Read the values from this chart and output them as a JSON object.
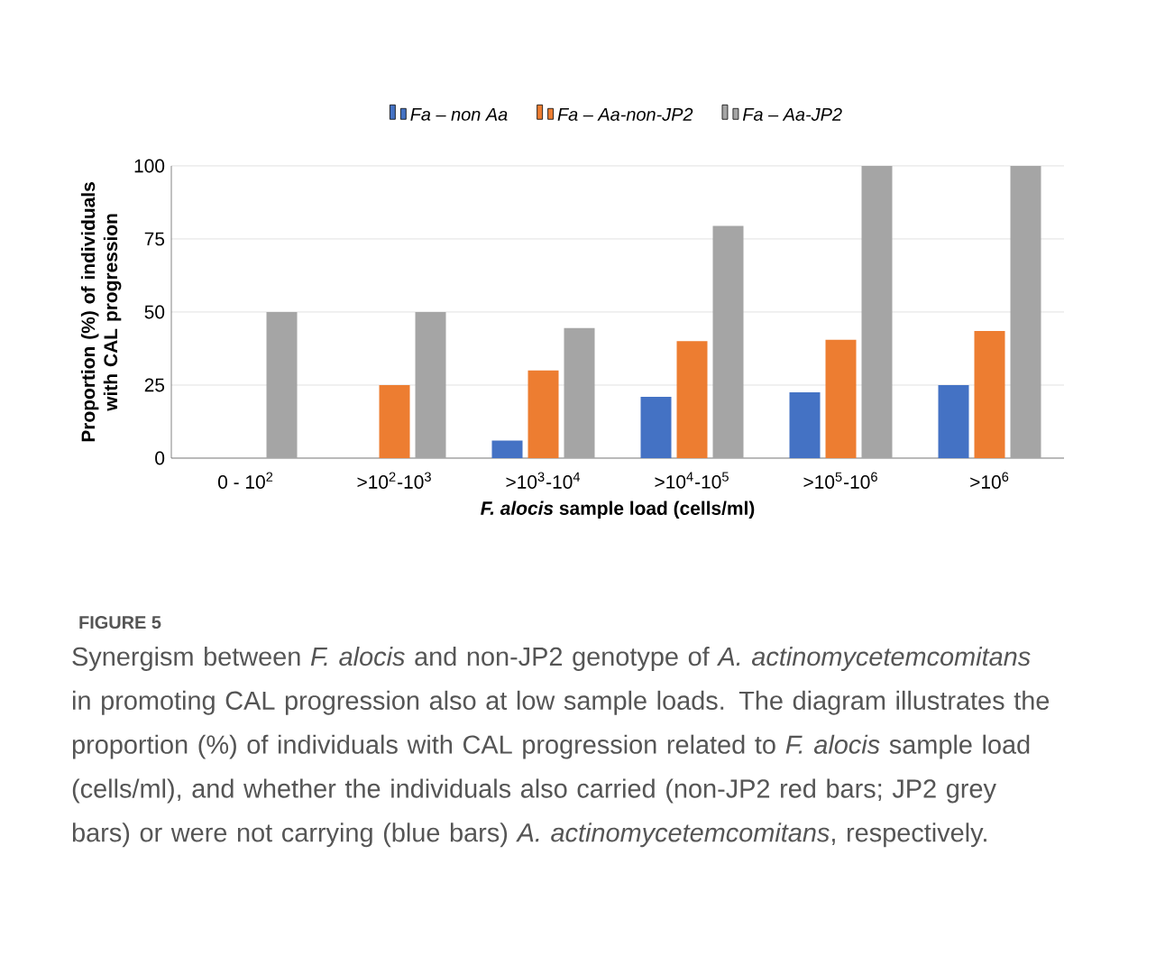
{
  "chart_data": {
    "type": "bar",
    "categories": [
      "0 - 10$^{2}$",
      ">10$^{2}$-10$^{3}$",
      ">10$^{3}$-10$^{4}$",
      ">10$^{4}$-10$^{5}$",
      ">10$^{5}$-10$^{6}$",
      ">10$^{6}$"
    ],
    "series": [
      {
        "name": "Fa – non Aa",
        "color": "#4472c4",
        "values": [
          null,
          null,
          6,
          21,
          22.5,
          25
        ]
      },
      {
        "name": "Fa – Aa-non-JP2",
        "color": "#ed7d31",
        "values": [
          null,
          25,
          30,
          40,
          40.5,
          43.5
        ]
      },
      {
        "name": "Fa – Aa-JP2",
        "color": "#a5a5a5",
        "values": [
          50,
          50,
          44.5,
          79.5,
          100,
          100
        ]
      }
    ],
    "xlabel": "*F. alocis* sample load (cells/ml)",
    "ylabel": "Proportion (%) of individuals with CAL progression",
    "ylim": [
      0,
      100
    ],
    "yticks": [
      0,
      25,
      50,
      75,
      100
    ],
    "grid": "y",
    "legend": "top",
    "annotations": [
      "FIGURE 5",
      "Synergism between *F. alocis* and non-JP2 genotype of *A. actinomycetemcomitans* in promoting CAL progression also at low sample loads. The diagram illustrates the proportion (%) of individuals with CAL progression related to *F. alocis* sample load (cells/ml), and whether the individuals also carried (non-JP2 red bars; JP2 grey bars) or were not carrying (blue bars) *A. actinomycetemcomitans*, respectively."
    ]
  }
}
